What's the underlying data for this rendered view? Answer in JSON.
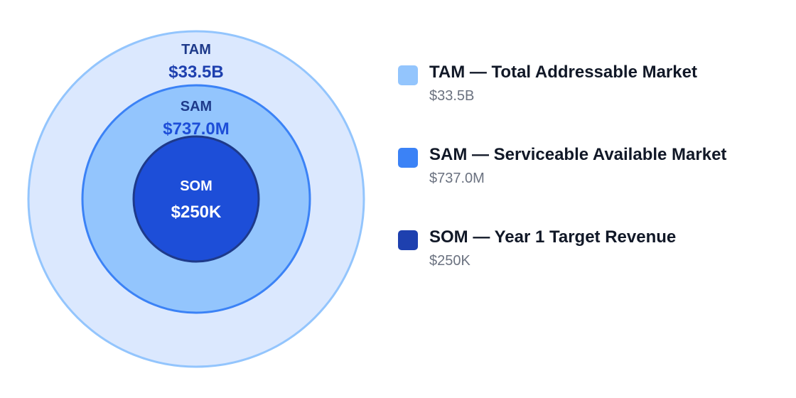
{
  "rings": [
    {
      "label": "TAM",
      "value": "$33.5B",
      "fill": "#dbe8fe",
      "stroke": "#93c5fd",
      "label_color": "#1e3a8a",
      "value_color": "#1e40af"
    },
    {
      "label": "SAM",
      "value": "$737.0M",
      "fill": "#93c5fd",
      "stroke": "#3b82f6",
      "label_color": "#1e3a8a",
      "value_color": "#1d4ed8"
    },
    {
      "label": "SOM",
      "value": "$250K",
      "fill": "#1d4ed8",
      "stroke": "#1e3a8a",
      "label_color": "#ffffff",
      "value_color": "#ffffff"
    }
  ],
  "legend": [
    {
      "title": "TAM — Total Addressable Market",
      "value": "$33.5B",
      "color": "#93c5fd"
    },
    {
      "title": "SAM — Serviceable Available Market",
      "value": "$737.0M",
      "color": "#3b82f6"
    },
    {
      "title": "SOM — Year 1 Target Revenue",
      "value": "$250K",
      "color": "#1e40af"
    }
  ]
}
